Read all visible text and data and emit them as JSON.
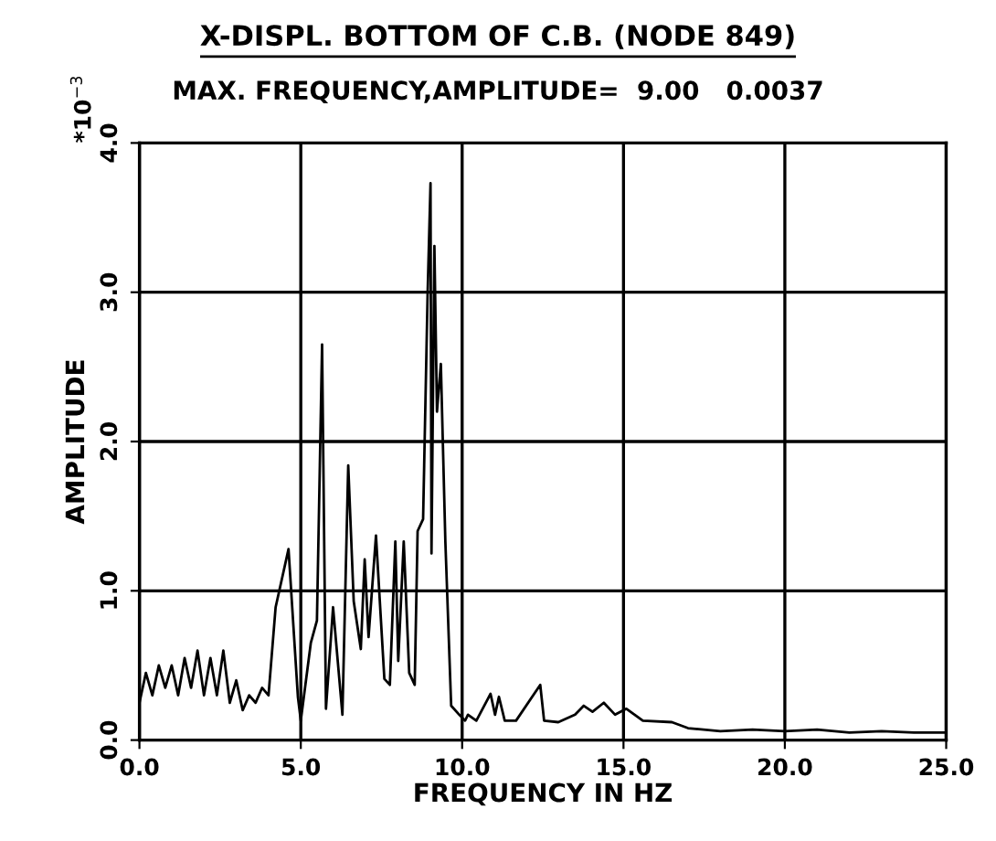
{
  "chart_data": {
    "type": "line",
    "title": "X-DISPL. BOTTOM OF C.B. (NODE 849)",
    "subtitle": "MAX. FREQUENCY,AMPLITUDE=  9.00   0.0037",
    "xlabel": "FREQUENCY IN HZ",
    "ylabel": "AMPLITUDE",
    "annotations": [
      "*10$^{−3}$"
    ],
    "x": [
      0.0,
      0.2,
      0.4,
      0.6,
      0.8,
      1.0,
      1.2,
      1.4,
      1.6,
      1.8,
      2.0,
      2.2,
      2.4,
      2.6,
      2.8,
      3.0,
      3.2,
      3.4,
      3.6,
      3.8,
      4.0,
      4.22,
      4.62,
      4.91,
      5.0,
      5.31,
      5.5,
      5.66,
      5.78,
      6.0,
      6.29,
      6.47,
      6.64,
      6.86,
      6.98,
      7.1,
      7.33,
      7.59,
      7.76,
      7.93,
      8.02,
      8.19,
      8.36,
      8.53,
      8.62,
      8.79,
      8.93,
      9.02,
      9.05,
      9.14,
      9.22,
      9.34,
      9.48,
      9.66,
      9.91,
      10.09,
      10.18,
      10.44,
      10.88,
      11.02,
      11.14,
      11.32,
      11.67,
      12.42,
      12.54,
      12.98,
      13.5,
      13.77,
      14.04,
      14.39,
      14.74,
      15.09,
      15.6,
      16.5,
      17,
      18,
      19,
      20,
      21,
      22,
      23,
      24,
      25
    ],
    "series": [
      {
        "color": "#000000",
        "values": [
          0.25,
          0.45,
          0.3,
          0.5,
          0.35,
          0.5,
          0.3,
          0.55,
          0.35,
          0.6,
          0.3,
          0.55,
          0.3,
          0.6,
          0.25,
          0.4,
          0.2,
          0.3,
          0.25,
          0.35,
          0.3,
          0.89,
          1.28,
          0.29,
          0.13,
          0.65,
          0.8,
          2.65,
          0.21,
          0.89,
          0.17,
          1.84,
          0.93,
          0.61,
          1.21,
          0.69,
          1.37,
          0.41,
          0.37,
          1.33,
          0.53,
          1.33,
          0.45,
          0.37,
          1.4,
          1.48,
          2.99,
          3.73,
          1.25,
          3.31,
          2.2,
          2.52,
          1.33,
          0.23,
          0.17,
          0.13,
          0.17,
          0.13,
          0.31,
          0.17,
          0.29,
          0.13,
          0.13,
          0.37,
          0.13,
          0.12,
          0.17,
          0.23,
          0.19,
          0.25,
          0.17,
          0.21,
          0.13,
          0.12,
          0.08,
          0.06,
          0.07,
          0.06,
          0.07,
          0.05,
          0.06,
          0.05,
          0.05
        ]
      }
    ],
    "xlim": [
      0,
      25
    ],
    "ylim": [
      0,
      4
    ],
    "xticks": [
      {
        "value": 0,
        "label": "0.0"
      },
      {
        "value": 5,
        "label": "5.0"
      },
      {
        "value": 10,
        "label": "10.0"
      },
      {
        "value": 15,
        "label": "15.0"
      },
      {
        "value": 20,
        "label": "20.0"
      },
      {
        "value": 25,
        "label": "25.0"
      }
    ],
    "yticks": [
      {
        "value": 0,
        "label": "0.0"
      },
      {
        "value": 1,
        "label": "1.0"
      },
      {
        "value": 2,
        "label": "2.0"
      },
      {
        "value": 3,
        "label": "3.0"
      },
      {
        "value": 4,
        "label": "4.0"
      }
    ],
    "grid": true,
    "line_style": "solid",
    "marker": "none"
  }
}
